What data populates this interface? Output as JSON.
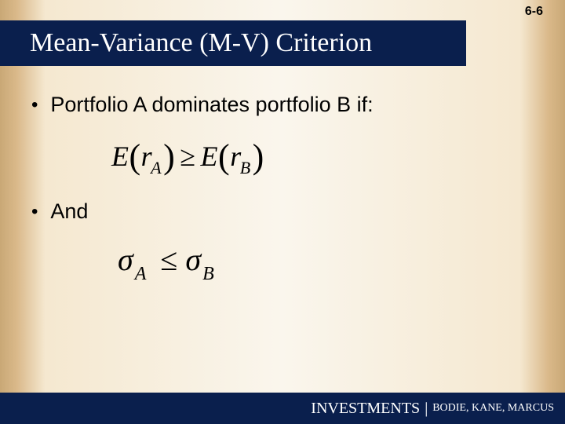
{
  "page_number": "6-6",
  "title": "Mean-Variance (M-V) Criterion",
  "bullets": {
    "b1": "Portfolio A dominates portfolio B if:",
    "b2": "And"
  },
  "formula1": {
    "E1": "E",
    "r1": "r",
    "subA": "A",
    "geq": "≥",
    "E2": "E",
    "r2": "r",
    "subB": "B"
  },
  "formula2": {
    "sigma1": "σ",
    "subA": "A",
    "leq": "≤",
    "sigma2": "σ",
    "subB": "B"
  },
  "footer": {
    "book": "INVESTMENTS",
    "separator": "|",
    "authors": "BODIE, KANE, MARCUS"
  },
  "colors": {
    "title_bg": "#0a1f4d",
    "title_fg": "#ffffff",
    "body_text": "#000000",
    "page_bg_center": "#faf6ed",
    "page_bg_edge": "#c9a876"
  }
}
